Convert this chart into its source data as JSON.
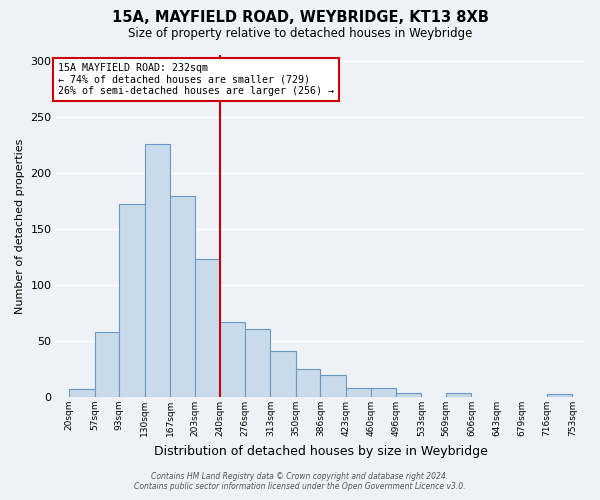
{
  "title_line1": "15A, MAYFIELD ROAD, WEYBRIDGE, KT13 8XB",
  "title_line2": "Size of property relative to detached houses in Weybridge",
  "xlabel": "Distribution of detached houses by size in Weybridge",
  "ylabel": "Number of detached properties",
  "bar_color": "#c9daea",
  "bar_edge_color": "#6699cc",
  "background_color": "#eef2f7",
  "grid_color": "#ffffff",
  "vline_x": 240,
  "vline_color": "#cc0000",
  "bin_edges": [
    20,
    57,
    93,
    130,
    167,
    203,
    240,
    276,
    313,
    350,
    386,
    423,
    460,
    496,
    533,
    569,
    606,
    643,
    679,
    716,
    753
  ],
  "bar_heights": [
    7,
    58,
    172,
    226,
    179,
    123,
    67,
    61,
    41,
    25,
    20,
    8,
    8,
    4,
    0,
    4,
    0,
    0,
    0,
    3
  ],
  "ylim": [
    0,
    305
  ],
  "yticks": [
    0,
    50,
    100,
    150,
    200,
    250,
    300
  ],
  "annotation_title": "15A MAYFIELD ROAD: 232sqm",
  "annotation_line2": "← 74% of detached houses are smaller (729)",
  "annotation_line3": "26% of semi-detached houses are larger (256) →",
  "annotation_box_color": "#ffffff",
  "annotation_box_edge": "#cc0000",
  "footer_line1": "Contains HM Land Registry data © Crown copyright and database right 2024.",
  "footer_line2": "Contains public sector information licensed under the Open Government Licence v3.0.",
  "tick_labels": [
    "20sqm",
    "57sqm",
    "93sqm",
    "130sqm",
    "167sqm",
    "203sqm",
    "240sqm",
    "276sqm",
    "313sqm",
    "350sqm",
    "386sqm",
    "423sqm",
    "460sqm",
    "496sqm",
    "533sqm",
    "569sqm",
    "606sqm",
    "643sqm",
    "679sqm",
    "716sqm",
    "753sqm"
  ]
}
